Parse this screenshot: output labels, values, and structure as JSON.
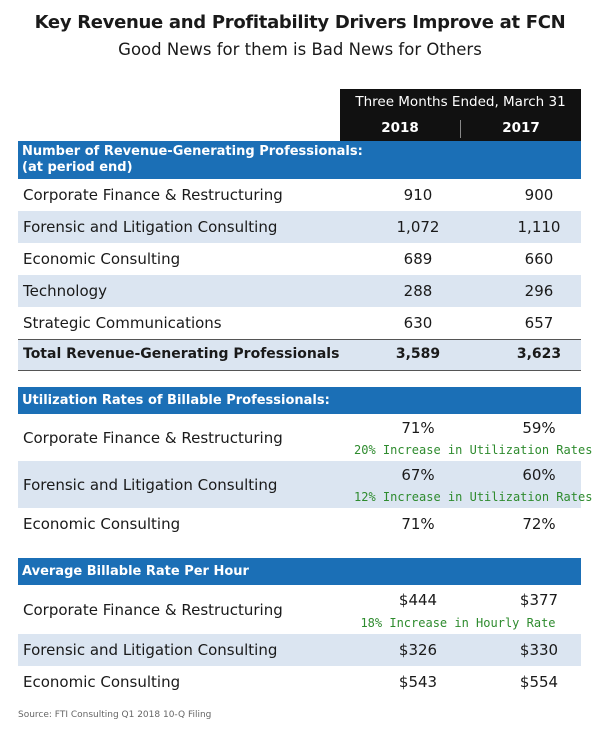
{
  "title": "Key Revenue and Profitability Drivers Improve at FCN",
  "subtitle": "Good News for them is Bad News for Others",
  "header": {
    "period": "Three Months Ended, March 31",
    "year1": "2018",
    "year2": "2017"
  },
  "professionals": {
    "heading_line1": "Number of Revenue-Generating Professionals:",
    "heading_line2": "(at period end)",
    "rows": [
      {
        "label": "Corporate Finance & Restructuring",
        "v2018": "910",
        "v2017": "900"
      },
      {
        "label": "Forensic and Litigation Consulting",
        "v2018": "1,072",
        "v2017": "1,110"
      },
      {
        "label": "Economic Consulting",
        "v2018": "689",
        "v2017": "660"
      },
      {
        "label": "Technology",
        "v2018": "288",
        "v2017": "296"
      },
      {
        "label": "Strategic Communications",
        "v2018": "630",
        "v2017": "657"
      }
    ],
    "total": {
      "label": "Total Revenue-Generating Professionals",
      "v2018": "3,589",
      "v2017": "3,623"
    }
  },
  "utilization": {
    "heading": "Utilization Rates of Billable Professionals:",
    "rows": [
      {
        "label": "Corporate Finance & Restructuring",
        "v2018": "71%",
        "v2017": "59%",
        "note": "20% Increase in Utilization Rates"
      },
      {
        "label": "Forensic and Litigation Consulting",
        "v2018": "67%",
        "v2017": "60%",
        "note": "12% Increase in Utilization Rates"
      },
      {
        "label": "Economic Consulting",
        "v2018": "71%",
        "v2017": "72%"
      }
    ]
  },
  "billable_rate": {
    "heading": "Average Billable Rate Per Hour",
    "rows": [
      {
        "label": "Corporate Finance & Restructuring",
        "v2018": "$444",
        "v2017": "$377",
        "note": "18% Increase in Hourly Rate"
      },
      {
        "label": "Forensic and Litigation Consulting",
        "v2018": "$326",
        "v2017": "$330"
      },
      {
        "label": "Economic Consulting",
        "v2018": "$543",
        "v2017": "$554"
      }
    ]
  },
  "source": "Source: FTI Consulting Q1 2018 10-Q Filing",
  "colors": {
    "section_blue": "#1b6fb6",
    "row_alt": "#dbe5f1",
    "note_green": "#2e8b2e",
    "header_black": "#111111"
  }
}
